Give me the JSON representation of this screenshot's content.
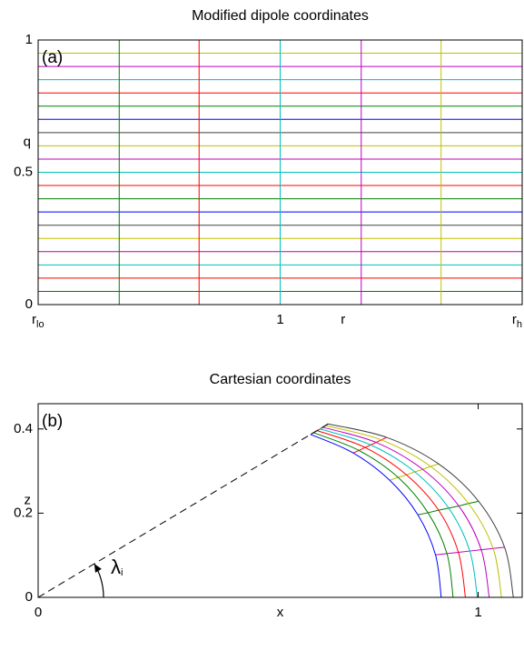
{
  "chart_data": [
    {
      "type": "grid",
      "title": "Modified dipole coordinates",
      "annotation": "(a)",
      "xlabel": "r",
      "ylabel": "q",
      "xlim": [
        0.8,
        1.2
      ],
      "ylim": [
        0,
        1
      ],
      "xticks": [
        {
          "value": 0.8,
          "label": "rlo"
        },
        1,
        {
          "value": 1.2,
          "label": "rh"
        }
      ],
      "yticks": [
        0,
        0.5,
        1
      ],
      "r_lines": [
        0.8,
        0.867,
        0.933,
        1,
        1.067,
        1.133,
        1.2
      ],
      "r_colors": [
        "#0000ff",
        "#008000",
        "#ff0000",
        "#00bfbf",
        "#bf00bf",
        "#bfbf00",
        "#404040"
      ],
      "q_lines": [
        0,
        0.05,
        0.1,
        0.15,
        0.2,
        0.25,
        0.3,
        0.35,
        0.4,
        0.45,
        0.5,
        0.55,
        0.6,
        0.65,
        0.7,
        0.75,
        0.8,
        0.85,
        0.9,
        0.95
      ],
      "q_colors": [
        "#0000ff",
        "#008000",
        "#ff0000",
        "#00bfbf",
        "#bf00bf",
        "#bfbf00",
        "#404040",
        "#0000ff",
        "#008000",
        "#ff0000",
        "#00bfbf",
        "#bf00bf",
        "#bfbf00",
        "#404040",
        "#0000ff",
        "#008000",
        "#ff0000",
        "#00bfbf",
        "#bf00bf",
        "#bfbf00"
      ]
    },
    {
      "type": "line",
      "title": "Cartesian coordinates",
      "annotation": "(b)",
      "angle_label": "λi",
      "xlabel": "x",
      "ylabel": "z",
      "xlim": [
        0,
        1.1
      ],
      "ylim": [
        0,
        0.46
      ],
      "xticks": [
        0,
        1
      ],
      "yticks": [
        0,
        0.2,
        0.4
      ],
      "radial_colors": [
        "#0000ff",
        "#bf00bf",
        "#008000",
        "#bfbf00",
        "#ff0000",
        "#404040"
      ],
      "series": [
        {
          "color": "#0000ff",
          "x": [
            0.916,
            0.903,
            0.863,
            0.799,
            0.716,
            0.619
          ],
          "values": [
            0,
            0.101,
            0.196,
            0.278,
            0.343,
            0.387
          ]
        },
        {
          "color": "#008000",
          "x": [
            0.943,
            0.929,
            0.886,
            0.818,
            0.729,
            0.626
          ],
          "values": [
            0,
            0.104,
            0.201,
            0.285,
            0.349,
            0.391
          ]
        },
        {
          "color": "#ff0000",
          "x": [
            0.971,
            0.955,
            0.91,
            0.837,
            0.743,
            0.634
          ],
          "values": [
            0,
            0.107,
            0.207,
            0.291,
            0.356,
            0.396
          ]
        },
        {
          "color": "#00bfbf",
          "x": [
            0.998,
            0.981,
            0.933,
            0.856,
            0.756,
            0.641
          ],
          "values": [
            0,
            0.11,
            0.212,
            0.298,
            0.362,
            0.4
          ]
        },
        {
          "color": "#bf00bf",
          "x": [
            1.025,
            1.007,
            0.956,
            0.874,
            0.768,
            0.647
          ],
          "values": [
            0,
            0.113,
            0.217,
            0.304,
            0.368,
            0.404
          ]
        },
        {
          "color": "#bfbf00",
          "x": [
            1.053,
            1.034,
            0.978,
            0.892,
            0.78,
            0.653
          ],
          "values": [
            0,
            0.116,
            0.223,
            0.311,
            0.374,
            0.408
          ]
        },
        {
          "color": "#404040",
          "x": [
            1.08,
            1.06,
            1.001,
            0.91,
            0.792,
            0.659
          ],
          "values": [
            0,
            0.119,
            0.228,
            0.317,
            0.38,
            0.412
          ]
        }
      ]
    }
  ]
}
